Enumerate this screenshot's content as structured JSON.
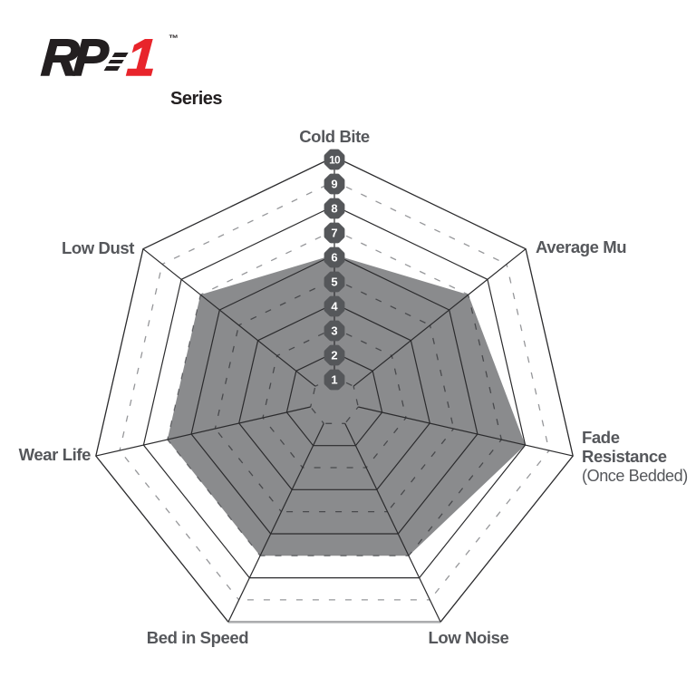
{
  "logo": {
    "brand": "RP",
    "model": "1",
    "trademark": "TM",
    "series_label": "Series",
    "brand_color": "#231F20",
    "model_color": "#E8242B"
  },
  "chart_data": {
    "type": "radar",
    "title": "RP-1 Series brake pad performance radar",
    "axes_count": 7,
    "scale": {
      "min": 0,
      "max": 10,
      "ring_interval": 1,
      "solid_rings": [
        2,
        4,
        6,
        8,
        10
      ],
      "dashed_rings": [
        1,
        3,
        5,
        7,
        9
      ],
      "tick_labels": [
        "1",
        "2",
        "3",
        "4",
        "5",
        "6",
        "7",
        "8",
        "9",
        "10"
      ]
    },
    "categories": [
      {
        "label": "Cold Bite",
        "lines": [
          {
            "text": "Cold Bite",
            "bold": true
          }
        ]
      },
      {
        "label": "Average Mu",
        "lines": [
          {
            "text": "Average Mu",
            "bold": true
          }
        ]
      },
      {
        "label": "Fade Resistance (Once Bedded)",
        "lines": [
          {
            "text": "Fade",
            "bold": true
          },
          {
            "text": "Resistance",
            "bold": true
          },
          {
            "text": "(Once Bedded)",
            "bold": false
          }
        ]
      },
      {
        "label": "Low Noise",
        "lines": [
          {
            "text": "Low Noise",
            "bold": true
          }
        ]
      },
      {
        "label": "Bed in Speed",
        "lines": [
          {
            "text": "Bed in Speed",
            "bold": true
          }
        ]
      },
      {
        "label": "Wear Life",
        "lines": [
          {
            "text": "Wear Life",
            "bold": true
          }
        ]
      },
      {
        "label": "Low Dust",
        "lines": [
          {
            "text": "Low Dust",
            "bold": true
          }
        ]
      }
    ],
    "series": [
      {
        "name": "RP-1",
        "values": [
          6,
          7,
          8,
          7,
          7,
          7,
          7
        ]
      }
    ],
    "legend_position": "none",
    "grid": true,
    "colors": {
      "fill": "#8A8B8D",
      "ring_solid": "#2B2B2D",
      "ring_dashed_outside": "#96979A",
      "ring_dashed_inside": "#48494C",
      "outer_bottom_edge": "#ACADAF",
      "spoke": "#2B2B2D",
      "badge_fill": "#55575A",
      "badge_text": "#FFFFFF",
      "label_color": "#55575B"
    }
  }
}
